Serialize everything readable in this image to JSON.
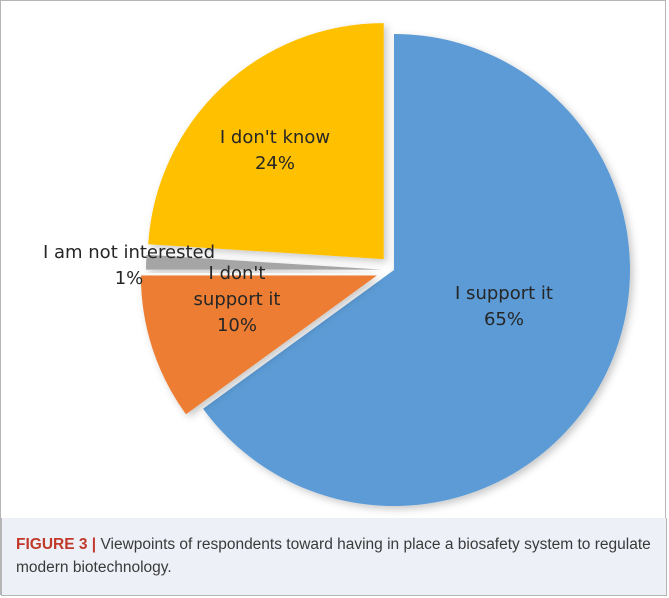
{
  "chart_data": {
    "type": "pie",
    "title": "",
    "slices": [
      {
        "label": "I support it",
        "lines": [
          "I support it"
        ],
        "value": 65,
        "pct_text": "65%",
        "color": "#5b9bd5"
      },
      {
        "label": "I don't support it",
        "lines": [
          "I don't",
          "support it"
        ],
        "value": 10,
        "pct_text": "10%",
        "color": "#ed7d31"
      },
      {
        "label": "I am not interested",
        "lines": [
          "I am not interested"
        ],
        "value": 1,
        "pct_text": "1%",
        "color": "#a5a5a5"
      },
      {
        "label": "I don't know",
        "lines": [
          "I don't know"
        ],
        "value": 24,
        "pct_text": "24%",
        "color": "#ffc000"
      }
    ],
    "exploded": true,
    "legend": "none"
  },
  "caption": {
    "label": "FIGURE 3 |",
    "text": "Viewpoints of respondents toward having in place a biosafety system to regulate modern biotechnology."
  }
}
